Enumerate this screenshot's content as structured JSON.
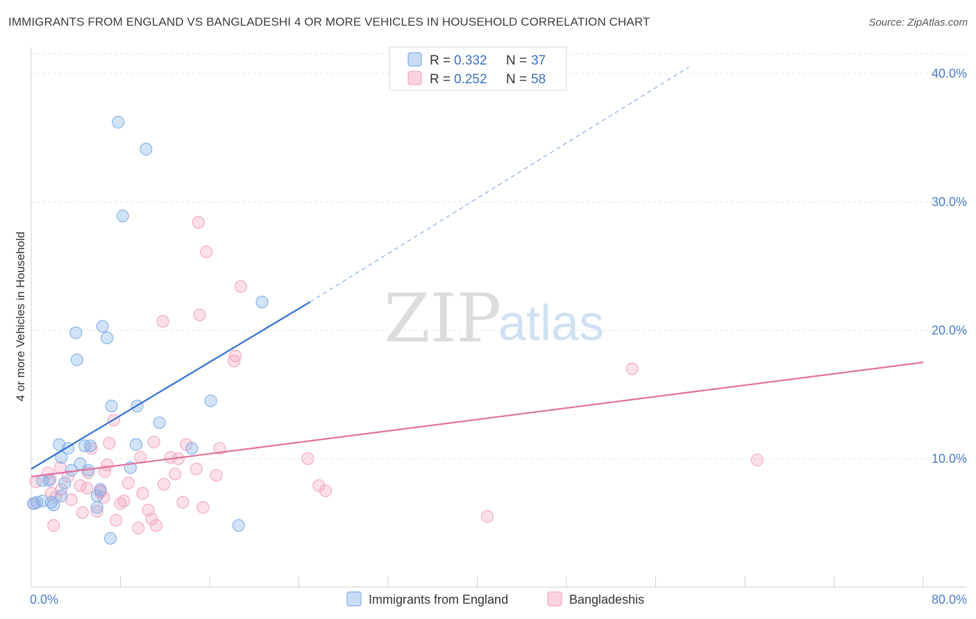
{
  "header": {
    "title": "IMMIGRANTS FROM ENGLAND VS BANGLADESHI 4 OR MORE VEHICLES IN HOUSEHOLD CORRELATION CHART",
    "source": "Source: ZipAtlas.com"
  },
  "watermark": {
    "zip": "ZIP",
    "atlas": "atlas"
  },
  "legend": {
    "rows": [
      {
        "r_label": "R =",
        "r_value": "0.332",
        "n_label": "N =",
        "n_value": "37"
      },
      {
        "r_label": "R =",
        "r_value": "0.252",
        "n_label": "N =",
        "n_value": "58"
      }
    ]
  },
  "chart_data": {
    "type": "scatter",
    "title": "IMMIGRANTS FROM ENGLAND VS BANGLADESHI 4 OR MORE VEHICLES IN HOUSEHOLD CORRELATION CHART",
    "xlabel": "",
    "ylabel": "4 or more Vehicles in Household",
    "xlim": [
      0,
      80
    ],
    "ylim": [
      0,
      41.5
    ],
    "x_tick_labels": [
      "0.0%",
      "80.0%"
    ],
    "y_ticks": [
      10,
      20,
      30,
      40
    ],
    "y_tick_labels": [
      "10.0%",
      "20.0%",
      "30.0%",
      "40.0%"
    ],
    "grid": true,
    "legend_position": "top-center",
    "colors": {
      "england": "#7fb0e8",
      "england_line": "#2e6fce",
      "bangladeshi": "#f3a6c0",
      "bangladeshi_line": "#e0709b"
    },
    "series": [
      {
        "name": "Immigrants from England",
        "r": 0.332,
        "n": 37,
        "trend": {
          "x0": 0,
          "y0": 9.2,
          "x1": 25,
          "y1": 22.2,
          "dash_to_x": 59,
          "dash_to_y": 40.5
        },
        "points": [
          [
            7.8,
            36.2
          ],
          [
            10.3,
            34.1
          ],
          [
            8.2,
            28.9
          ],
          [
            20.7,
            22.2
          ],
          [
            6.4,
            20.3
          ],
          [
            4.0,
            19.8
          ],
          [
            6.8,
            19.4
          ],
          [
            4.1,
            17.7
          ],
          [
            7.2,
            14.1
          ],
          [
            9.5,
            14.1
          ],
          [
            16.1,
            14.5
          ],
          [
            11.5,
            12.8
          ],
          [
            2.5,
            11.1
          ],
          [
            3.3,
            10.8
          ],
          [
            4.8,
            11.0
          ],
          [
            5.3,
            11.0
          ],
          [
            9.4,
            11.1
          ],
          [
            14.4,
            10.8
          ],
          [
            2.7,
            10.1
          ],
          [
            4.4,
            9.6
          ],
          [
            3.6,
            9.1
          ],
          [
            5.1,
            9.1
          ],
          [
            8.9,
            9.3
          ],
          [
            1.6,
            8.3
          ],
          [
            1.0,
            8.3
          ],
          [
            3.0,
            8.1
          ],
          [
            2.7,
            7.1
          ],
          [
            5.9,
            7.1
          ],
          [
            6.2,
            7.6
          ],
          [
            0.5,
            6.6
          ],
          [
            1.0,
            6.7
          ],
          [
            1.8,
            6.6
          ],
          [
            0.2,
            6.5
          ],
          [
            5.9,
            6.2
          ],
          [
            2.0,
            6.4
          ],
          [
            18.6,
            4.8
          ],
          [
            7.1,
            3.8
          ]
        ]
      },
      {
        "name": "Bangladeshis",
        "r": 0.252,
        "n": 58,
        "trend": {
          "x0": 0,
          "y0": 8.6,
          "x1": 80,
          "y1": 17.5
        },
        "points": [
          [
            15.0,
            28.4
          ],
          [
            15.7,
            26.1
          ],
          [
            18.8,
            23.4
          ],
          [
            11.8,
            20.7
          ],
          [
            15.1,
            21.2
          ],
          [
            18.3,
            18.0
          ],
          [
            18.2,
            17.6
          ],
          [
            53.9,
            17.0
          ],
          [
            7.4,
            13.0
          ],
          [
            11.0,
            11.3
          ],
          [
            7.0,
            11.2
          ],
          [
            13.9,
            11.1
          ],
          [
            16.9,
            10.8
          ],
          [
            5.4,
            10.8
          ],
          [
            9.8,
            10.1
          ],
          [
            12.5,
            10.1
          ],
          [
            13.2,
            10.0
          ],
          [
            24.8,
            10.0
          ],
          [
            65.1,
            9.9
          ],
          [
            6.8,
            9.5
          ],
          [
            2.6,
            9.3
          ],
          [
            14.8,
            9.2
          ],
          [
            6.6,
            9.0
          ],
          [
            5.1,
            8.9
          ],
          [
            12.9,
            8.8
          ],
          [
            16.6,
            8.7
          ],
          [
            1.5,
            8.9
          ],
          [
            1.7,
            8.4
          ],
          [
            0.4,
            8.2
          ],
          [
            8.7,
            8.1
          ],
          [
            11.9,
            8.0
          ],
          [
            25.8,
            7.9
          ],
          [
            5.0,
            7.7
          ],
          [
            2.7,
            7.6
          ],
          [
            6.2,
            7.5
          ],
          [
            1.8,
            7.3
          ],
          [
            6.2,
            7.4
          ],
          [
            10.0,
            7.3
          ],
          [
            26.4,
            7.5
          ],
          [
            2.2,
            7.0
          ],
          [
            3.6,
            6.8
          ],
          [
            8.3,
            6.7
          ],
          [
            13.6,
            6.6
          ],
          [
            8.0,
            6.5
          ],
          [
            15.4,
            6.2
          ],
          [
            10.5,
            6.0
          ],
          [
            0.3,
            6.5
          ],
          [
            5.9,
            5.9
          ],
          [
            4.6,
            5.8
          ],
          [
            10.8,
            5.3
          ],
          [
            7.6,
            5.2
          ],
          [
            40.9,
            5.5
          ],
          [
            2.0,
            4.8
          ],
          [
            9.6,
            4.6
          ],
          [
            11.2,
            4.8
          ],
          [
            6.5,
            7.0
          ],
          [
            4.4,
            7.9
          ],
          [
            3.3,
            8.6
          ]
        ]
      }
    ]
  }
}
